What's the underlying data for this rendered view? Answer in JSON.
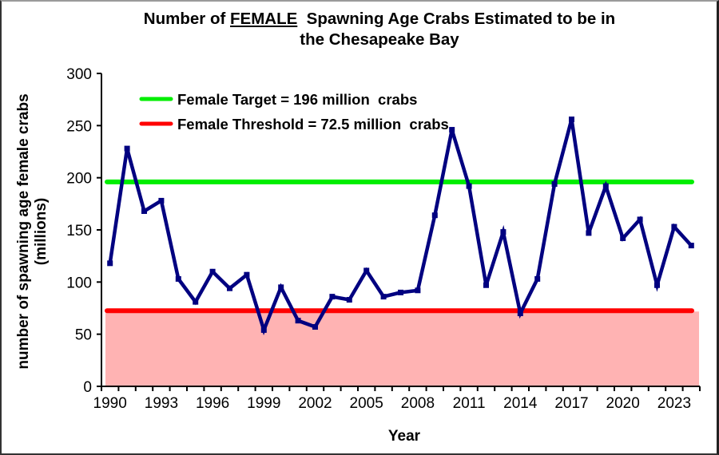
{
  "chart_data": {
    "type": "line",
    "title_parts": [
      "Number of ",
      "FEMALE",
      "  Spawning Age Crabs Estimated to be in"
    ],
    "title_line2": "the Chesapeake Bay",
    "xlabel": "Year",
    "ylabel_line1": "number of spawning age female crabs",
    "ylabel_line2": "(millions)",
    "ylim": [
      0,
      300
    ],
    "yticks": [
      0,
      50,
      100,
      150,
      200,
      250,
      300
    ],
    "xtick_labels": [
      "1990",
      "1993",
      "1996",
      "1999",
      "2002",
      "2005",
      "2008",
      "2011",
      "2014",
      "2017",
      "2020",
      "2023"
    ],
    "x": [
      1990,
      1991,
      1992,
      1993,
      1994,
      1995,
      1996,
      1997,
      1998,
      1999,
      2000,
      2001,
      2002,
      2003,
      2004,
      2005,
      2006,
      2007,
      2008,
      2009,
      2010,
      2011,
      2012,
      2013,
      2014,
      2015,
      2016,
      2017,
      2018,
      2019,
      2020,
      2021,
      2022,
      2023,
      2024
    ],
    "series": [
      {
        "name": "Female spawning age crabs",
        "color": "#000080",
        "values": [
          118,
          228,
          168,
          178,
          103,
          81,
          110,
          94,
          107,
          54,
          95,
          63,
          57,
          86,
          83,
          111,
          86,
          90,
          92,
          164,
          246,
          192,
          97,
          148,
          70,
          103,
          194,
          256,
          147,
          192,
          142,
          160,
          97,
          153,
          135
        ]
      }
    ],
    "reference_lines": [
      {
        "name": "Female Target",
        "value": 196,
        "color": "#00ee00",
        "label": "Female Target = 196 million  crabs"
      },
      {
        "name": "Female Threshold",
        "value": 72.5,
        "color": "#ff0000",
        "label": "Female Threshold = 72.5 million  crabs"
      }
    ],
    "threshold_fill_color": "#ffb3b3",
    "legend_position": "top-left",
    "grid": false
  }
}
